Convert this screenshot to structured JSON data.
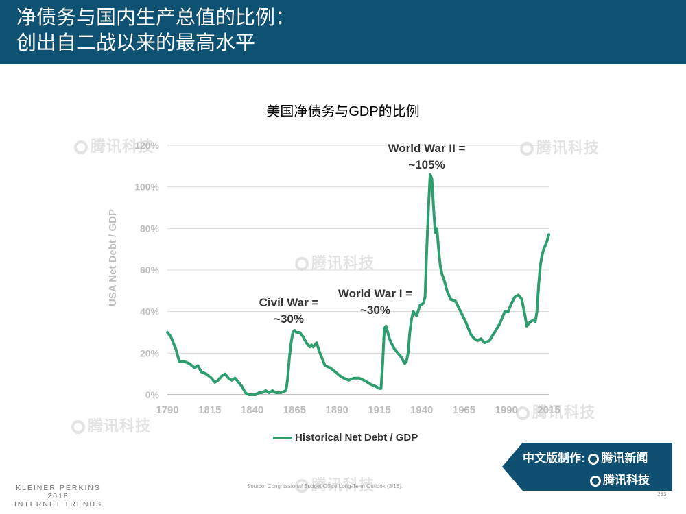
{
  "header": {
    "line1": "净债务与国内生产总值的比例：",
    "line2": "创出自二战以来的最高水平",
    "background_color": "#0f5173"
  },
  "chart_data": {
    "type": "line",
    "title": "美国净债务与GDP的比例",
    "ylabel": "USA Net Debt / GDP",
    "xlabel": "",
    "xlim": [
      1790,
      2015
    ],
    "ylim": [
      0,
      120
    ],
    "x_ticks": [
      "1790",
      "1815",
      "1840",
      "1865",
      "1890",
      "1915",
      "1940",
      "1965",
      "1990",
      "2015"
    ],
    "y_ticks": [
      "0%",
      "20%",
      "40%",
      "60%",
      "80%",
      "100%",
      "120%"
    ],
    "grid": true,
    "legend_position": "bottom",
    "series": [
      {
        "name": "Historical Net Debt / GDP",
        "color": "#2f9e6e",
        "x": [
          1790,
          1792,
          1795,
          1797,
          1800,
          1803,
          1806,
          1808,
          1810,
          1813,
          1816,
          1818,
          1820,
          1822,
          1824,
          1826,
          1828,
          1830,
          1832,
          1834,
          1836,
          1838,
          1840,
          1842,
          1844,
          1846,
          1848,
          1850,
          1852,
          1854,
          1857,
          1860,
          1861,
          1862,
          1863,
          1864,
          1865,
          1866,
          1868,
          1870,
          1872,
          1874,
          1875,
          1876,
          1878,
          1880,
          1883,
          1886,
          1889,
          1892,
          1894,
          1897,
          1900,
          1903,
          1906,
          1910,
          1913,
          1915,
          1916,
          1917,
          1918,
          1919,
          1920,
          1921,
          1922,
          1924,
          1926,
          1928,
          1930,
          1931,
          1932,
          1933,
          1934,
          1935,
          1937,
          1939,
          1941,
          1942,
          1943,
          1944,
          1945,
          1946,
          1947,
          1948,
          1949,
          1950,
          1951,
          1952,
          1953,
          1955,
          1957,
          1960,
          1963,
          1966,
          1969,
          1971,
          1973,
          1975,
          1977,
          1980,
          1983,
          1986,
          1989,
          1991,
          1993,
          1995,
          1997,
          1999,
          2001,
          2002,
          2004,
          2006,
          2007,
          2008,
          2009,
          2010,
          2011,
          2012,
          2013,
          2014,
          2015
        ],
        "y": [
          30,
          28,
          22,
          16,
          16,
          15,
          13,
          14,
          11,
          10,
          8,
          6,
          7,
          9,
          10,
          8,
          7,
          8,
          6,
          4,
          1,
          0,
          0,
          0,
          1,
          1,
          2,
          1,
          2,
          1,
          1,
          2,
          8,
          18,
          25,
          30,
          31,
          30,
          30,
          28,
          25,
          23,
          24,
          23,
          25,
          20,
          14,
          13,
          11,
          9,
          8,
          7,
          8,
          8,
          7,
          5,
          4,
          3,
          3,
          15,
          32,
          33,
          30,
          27,
          25,
          22,
          20,
          18,
          15,
          16,
          20,
          30,
          36,
          40,
          38,
          43,
          44,
          47,
          70,
          90,
          106,
          104,
          90,
          78,
          80,
          70,
          62,
          58,
          56,
          50,
          46,
          45,
          40,
          35,
          29,
          27,
          26,
          27,
          25,
          26,
          30,
          34,
          40,
          40,
          44,
          47,
          48,
          46,
          38,
          33,
          35,
          36,
          35,
          40,
          53,
          62,
          67,
          70,
          72,
          74,
          77
        ]
      }
    ],
    "annotations": [
      {
        "line1": "Civil War =",
        "line2": "~30%"
      },
      {
        "line1": "World War I =",
        "line2": "~30%"
      },
      {
        "line1": "World War II =",
        "line2": "~105%"
      }
    ]
  },
  "watermark": {
    "text": "腾讯科技"
  },
  "badge": {
    "label": "中文版制作:",
    "brand1": "腾讯新闻",
    "brand2": "腾讯科技"
  },
  "footer": {
    "brand_line1": "KLEINER PERKINS",
    "brand_line2": "2018",
    "brand_line3": "INTERNET TRENDS",
    "source": "Source: Congressional Budget Office Long-Term Outlook (3/18).",
    "page_number": "283"
  }
}
